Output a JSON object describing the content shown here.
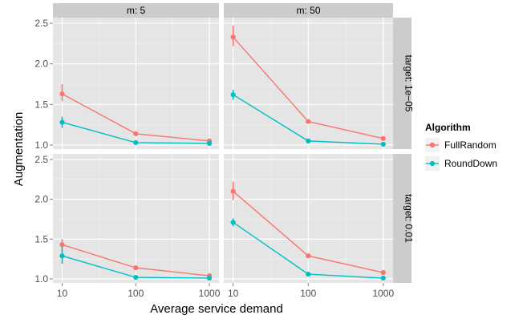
{
  "chart_data": {
    "type": "line",
    "xlabel": "Average service demand",
    "ylabel": "Augmentation",
    "x_scale": "log10",
    "xlim": [
      7.5,
      1350
    ],
    "ylim": [
      0.95,
      2.57
    ],
    "x_ticks": [
      10,
      100,
      1000
    ],
    "x_tick_labels": [
      "10",
      "100",
      "1000"
    ],
    "y_ticks": [
      1.0,
      1.5,
      2.0,
      2.5
    ],
    "y_tick_labels": [
      "1.0",
      "1.5",
      "2.0",
      "2.5"
    ],
    "grid": true,
    "legend_position": "right",
    "legend": {
      "title": "Algorithm",
      "entries": [
        {
          "name": "FullRandom",
          "color": "#F8766D"
        },
        {
          "name": "RoundDown",
          "color": "#00BFC4"
        }
      ]
    },
    "facet_columns": [
      "m: 5",
      "m: 50"
    ],
    "facet_rows": [
      "target: 1e−05",
      "target: 0.01"
    ],
    "panels": [
      {
        "column": "m: 5",
        "row": "target: 1e−05",
        "series": [
          {
            "name": "FullRandom",
            "color": "#F8766D",
            "points": [
              {
                "x": 10,
                "y": 1.63,
                "ymin": 1.54,
                "ymax": 1.75
              },
              {
                "x": 100,
                "y": 1.14
              },
              {
                "x": 1000,
                "y": 1.05
              }
            ]
          },
          {
            "name": "RoundDown",
            "color": "#00BFC4",
            "points": [
              {
                "x": 10,
                "y": 1.28,
                "ymin": 1.21,
                "ymax": 1.35
              },
              {
                "x": 100,
                "y": 1.03
              },
              {
                "x": 1000,
                "y": 1.02
              }
            ]
          }
        ]
      },
      {
        "column": "m: 50",
        "row": "target: 1e−05",
        "series": [
          {
            "name": "FullRandom",
            "color": "#F8766D",
            "points": [
              {
                "x": 10,
                "y": 2.33,
                "ymin": 2.22,
                "ymax": 2.47
              },
              {
                "x": 100,
                "y": 1.29
              },
              {
                "x": 1000,
                "y": 1.08
              }
            ]
          },
          {
            "name": "RoundDown",
            "color": "#00BFC4",
            "points": [
              {
                "x": 10,
                "y": 1.62,
                "ymin": 1.56,
                "ymax": 1.68
              },
              {
                "x": 100,
                "y": 1.05
              },
              {
                "x": 1000,
                "y": 1.01
              }
            ]
          }
        ]
      },
      {
        "column": "m: 5",
        "row": "target: 0.01",
        "series": [
          {
            "name": "FullRandom",
            "color": "#F8766D",
            "points": [
              {
                "x": 10,
                "y": 1.43,
                "ymin": 1.36,
                "ymax": 1.5
              },
              {
                "x": 100,
                "y": 1.14
              },
              {
                "x": 1000,
                "y": 1.04
              }
            ]
          },
          {
            "name": "RoundDown",
            "color": "#00BFC4",
            "points": [
              {
                "x": 10,
                "y": 1.29,
                "ymin": 1.19,
                "ymax": 1.41
              },
              {
                "x": 100,
                "y": 1.02
              },
              {
                "x": 1000,
                "y": 1.01
              }
            ]
          }
        ]
      },
      {
        "column": "m: 50",
        "row": "target: 0.01",
        "series": [
          {
            "name": "FullRandom",
            "color": "#F8766D",
            "points": [
              {
                "x": 10,
                "y": 2.1,
                "ymin": 1.99,
                "ymax": 2.22
              },
              {
                "x": 100,
                "y": 1.29
              },
              {
                "x": 1000,
                "y": 1.08
              }
            ]
          },
          {
            "name": "RoundDown",
            "color": "#00BFC4",
            "points": [
              {
                "x": 10,
                "y": 1.71,
                "ymin": 1.66,
                "ymax": 1.76
              },
              {
                "x": 100,
                "y": 1.06
              },
              {
                "x": 1000,
                "y": 1.01
              }
            ]
          }
        ]
      }
    ]
  }
}
